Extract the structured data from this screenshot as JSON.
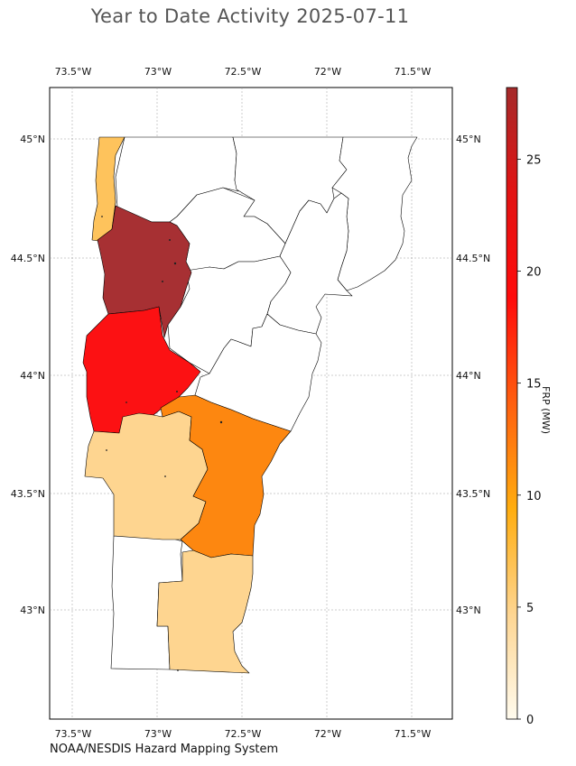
{
  "title": "Year to Date Activity 2025-07-11",
  "source": "NOAA/NESDIS Hazard Mapping System",
  "map": {
    "lon_ticks": [
      "73.5°W",
      "73°W",
      "72.5°W",
      "72°W",
      "71.5°W"
    ],
    "lat_ticks": [
      "45°N",
      "44.5°N",
      "44°N",
      "43.5°N",
      "43°N"
    ],
    "extent": {
      "lon": [
        -73.65,
        -71.27
      ],
      "lat": [
        42.55,
        45.22
      ]
    }
  },
  "colorbar": {
    "label": "FRP (MW)",
    "ticks": [
      "0",
      "5",
      "10",
      "15",
      "20",
      "25"
    ],
    "range": [
      0,
      28.2
    ],
    "colors": [
      "#fffbee",
      "#fed591",
      "#ffad0f",
      "#ff5f0f",
      "#ff0b0b",
      "#e21313",
      "#a52a2a"
    ]
  },
  "counties": [
    {
      "name": "Grand Isle",
      "frp": 4.9,
      "color": "#fec35c"
    },
    {
      "name": "Chittenden",
      "frp": 28.2,
      "color": "#a73033"
    },
    {
      "name": "Addison",
      "frp": 20.4,
      "color": "#fc1113"
    },
    {
      "name": "Windsor",
      "frp": 11.7,
      "color": "#fd8710"
    },
    {
      "name": "Rutland",
      "frp": 3.4,
      "color": "#fed590"
    },
    {
      "name": "Windham",
      "frp": 3.4,
      "color": "#fed590"
    },
    {
      "name": "Bennington",
      "frp": 0,
      "color": "#ffffff"
    },
    {
      "name": "Franklin",
      "frp": 0,
      "color": "#ffffff"
    },
    {
      "name": "Lamoille",
      "frp": 0,
      "color": "#ffffff"
    },
    {
      "name": "Washington",
      "frp": 0,
      "color": "#ffffff"
    },
    {
      "name": "Orange",
      "frp": 0,
      "color": "#ffffff"
    },
    {
      "name": "Orleans",
      "frp": 0,
      "color": "#ffffff"
    },
    {
      "name": "Caledonia",
      "frp": 0,
      "color": "#ffffff"
    },
    {
      "name": "Essex",
      "frp": 0,
      "color": "#ffffff"
    }
  ]
}
